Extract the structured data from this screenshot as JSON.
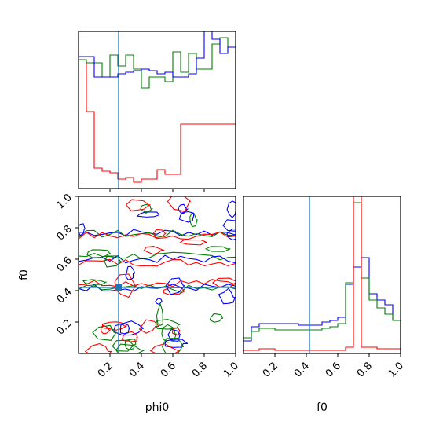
{
  "chart_data": {
    "type": "corner",
    "truth": {
      "phi0": 0.255,
      "f0": 0.42
    },
    "x_range": [
      0,
      1
    ],
    "y_range": [
      0,
      1
    ],
    "labels": {
      "phi0": "phi0",
      "f0": "f0"
    },
    "ticks": {
      "phi0": [
        "0.2",
        "0.4",
        "0.6",
        "0.8",
        "1.0"
      ],
      "f0": [
        "0.2",
        "0.4",
        "0.6",
        "0.8",
        "1.0"
      ]
    },
    "series_colors": {
      "blue": "#0000ff",
      "green": "#008000",
      "red": "#ff0000",
      "truth": "#1f77b4"
    },
    "hist_phi0": {
      "bins": 20,
      "blue": [
        0.84,
        0.84,
        0.71,
        0.71,
        0.71,
        0.73,
        0.74,
        0.75,
        0.76,
        0.75,
        0.73,
        0.74,
        0.71,
        0.71,
        0.73,
        0.83,
        1.0,
        0.95,
        0.86,
        0.9
      ],
      "green": [
        0.82,
        0.8,
        0.8,
        0.71,
        0.85,
        0.78,
        0.85,
        0.76,
        0.64,
        0.71,
        0.71,
        0.68,
        0.87,
        0.74,
        0.86,
        0.76,
        0.76,
        0.92,
        0.96,
        0.9
      ],
      "red": [
        0.82,
        0.49,
        0.13,
        0.11,
        0.1,
        0.06,
        0.07,
        0.04,
        0.06,
        0.06,
        0.12,
        0.09,
        0.09,
        0.41,
        0.41,
        0.41,
        0.41,
        0.41,
        0.41,
        0.41
      ]
    },
    "hist_f0": {
      "bins": 20,
      "blue": [
        0.08,
        0.17,
        0.19,
        0.19,
        0.19,
        0.19,
        0.19,
        0.18,
        0.18,
        0.18,
        0.2,
        0.21,
        0.23,
        0.44,
        0.55,
        0.61,
        0.38,
        0.34,
        0.31,
        0.21
      ],
      "green": [
        0.1,
        0.14,
        0.16,
        0.16,
        0.15,
        0.15,
        0.15,
        0.15,
        0.15,
        0.15,
        0.16,
        0.17,
        0.19,
        0.45,
        0.96,
        0.48,
        0.34,
        0.29,
        0.25,
        0.21
      ],
      "red": [
        0.02,
        0.02,
        0.03,
        0.03,
        0.02,
        0.02,
        0.02,
        0.02,
        0.02,
        0.02,
        0.02,
        0.02,
        0.02,
        0.04,
        1.2,
        0.04,
        0.04,
        0.03,
        0.03,
        0.03
      ]
    },
    "scatter_contours": true
  }
}
